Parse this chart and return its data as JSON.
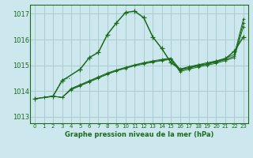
{
  "title": "Graphe pression niveau de la mer (hPa)",
  "bg_color": "#cce8ee",
  "grid_color": "#aacccc",
  "line_color": "#1a6b1a",
  "dark_line_color": "#1a5c1a",
  "xlim": [
    -0.5,
    23.5
  ],
  "ylim": [
    1012.75,
    1017.35
  ],
  "yticks": [
    1013,
    1014,
    1015,
    1016,
    1017
  ],
  "xticks": [
    0,
    1,
    2,
    3,
    4,
    5,
    6,
    7,
    8,
    9,
    10,
    11,
    12,
    13,
    14,
    15,
    16,
    17,
    18,
    19,
    20,
    21,
    22,
    23
  ],
  "main_curve_x": [
    0,
    2,
    3,
    5,
    6,
    7,
    8,
    9,
    10,
    11,
    12,
    13,
    14,
    15,
    16,
    17,
    18,
    19,
    20,
    21,
    22,
    23
  ],
  "main_curve_y": [
    1013.7,
    1013.8,
    1014.4,
    1014.85,
    1015.3,
    1015.5,
    1016.2,
    1016.65,
    1017.05,
    1017.1,
    1016.85,
    1016.1,
    1015.65,
    1015.1,
    1014.85,
    1014.9,
    1015.0,
    1015.05,
    1015.15,
    1015.25,
    1015.55,
    1016.1
  ],
  "dotted_curve_x": [
    0,
    1,
    2,
    3,
    4
  ],
  "dotted_curve_y": [
    1013.7,
    1013.75,
    1013.8,
    1014.45,
    1014.5
  ],
  "line_a_x": [
    1,
    2,
    3,
    4,
    5,
    6,
    7,
    8,
    9,
    10,
    11,
    12,
    13,
    14,
    15,
    16,
    17,
    18,
    19,
    20,
    21,
    22,
    23
  ],
  "line_a_y": [
    1013.75,
    1013.8,
    1013.75,
    1014.05,
    1014.2,
    1014.35,
    1014.5,
    1014.65,
    1014.78,
    1014.88,
    1014.98,
    1015.05,
    1015.12,
    1015.18,
    1015.23,
    1014.75,
    1014.85,
    1014.93,
    1015.0,
    1015.08,
    1015.18,
    1015.3,
    1016.5
  ],
  "line_b_x": [
    1,
    2,
    3,
    4,
    5,
    6,
    7,
    8,
    9,
    10,
    11,
    12,
    13,
    14,
    15,
    16,
    17,
    18,
    19,
    20,
    21,
    22,
    23
  ],
  "line_b_y": [
    1013.75,
    1013.8,
    1013.75,
    1014.08,
    1014.22,
    1014.38,
    1014.52,
    1014.67,
    1014.8,
    1014.9,
    1015.0,
    1015.08,
    1015.14,
    1015.2,
    1015.25,
    1014.8,
    1014.9,
    1014.97,
    1015.05,
    1015.12,
    1015.22,
    1015.35,
    1016.65
  ],
  "line_c_x": [
    1,
    2,
    3,
    4,
    5,
    6,
    7,
    8,
    9,
    10,
    11,
    12,
    13,
    14,
    15,
    16,
    17,
    18,
    19,
    20,
    21,
    22,
    23
  ],
  "line_c_y": [
    1013.75,
    1013.8,
    1013.75,
    1014.1,
    1014.25,
    1014.4,
    1014.55,
    1014.7,
    1014.82,
    1014.92,
    1015.02,
    1015.1,
    1015.17,
    1015.23,
    1015.28,
    1014.85,
    1014.95,
    1015.02,
    1015.1,
    1015.17,
    1015.27,
    1015.42,
    1016.8
  ]
}
